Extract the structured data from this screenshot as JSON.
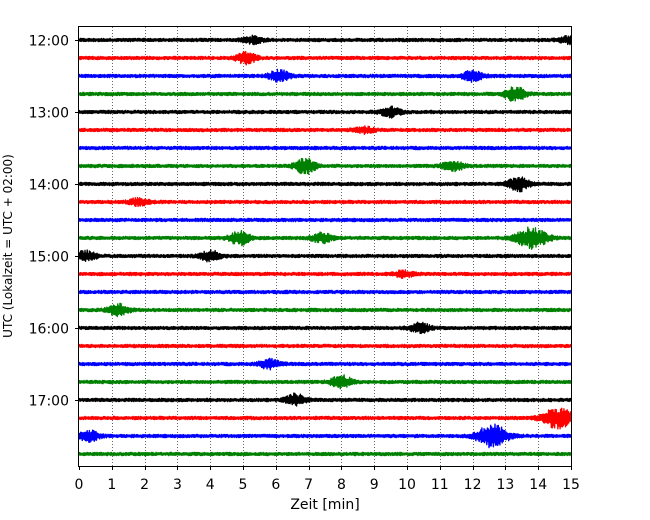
{
  "chart_data": {
    "type": "line",
    "title": "",
    "xlabel": "Zeit  [min]",
    "ylabel": "UTC (Lokalzeit = UTC + 02:00)",
    "xlim": [
      0,
      15
    ],
    "x_ticks": [
      0,
      1,
      2,
      3,
      4,
      5,
      6,
      7,
      8,
      9,
      10,
      11,
      12,
      13,
      14,
      15
    ],
    "x_tick_labels": [
      "0",
      "1",
      "2",
      "3",
      "4",
      "5",
      "6",
      "7",
      "8",
      "9",
      "10",
      "11",
      "12",
      "13",
      "14",
      "15"
    ],
    "y_tick_labels": [
      "12:00",
      "13:00",
      "14:00",
      "15:00",
      "16:00",
      "17:00"
    ],
    "grid": "vertical dotted",
    "trace_colors": [
      "#000000",
      "#ff0000",
      "#0000ff",
      "#008000"
    ],
    "series": [
      {
        "start": "12:00",
        "color": "#000000",
        "events": [
          {
            "t": 5.3,
            "amp": 0.35
          },
          {
            "t": 14.9,
            "amp": 0.35
          }
        ]
      },
      {
        "start": "12:15",
        "color": "#ff0000",
        "events": [
          {
            "t": 5.1,
            "amp": 0.6
          }
        ]
      },
      {
        "start": "12:30",
        "color": "#0000ff",
        "events": [
          {
            "t": 6.1,
            "amp": 0.6
          },
          {
            "t": 12.0,
            "amp": 0.55
          }
        ]
      },
      {
        "start": "12:45",
        "color": "#008000",
        "events": [
          {
            "t": 13.3,
            "amp": 0.75
          }
        ]
      },
      {
        "start": "13:00",
        "color": "#000000",
        "events": [
          {
            "t": 9.5,
            "amp": 0.5
          }
        ]
      },
      {
        "start": "13:15",
        "color": "#ff0000",
        "events": [
          {
            "t": 8.7,
            "amp": 0.3
          }
        ]
      },
      {
        "start": "13:30",
        "color": "#0000ff",
        "events": []
      },
      {
        "start": "13:45",
        "color": "#008000",
        "events": [
          {
            "t": 6.9,
            "amp": 0.85
          },
          {
            "t": 11.4,
            "amp": 0.55
          }
        ]
      },
      {
        "start": "14:00",
        "color": "#000000",
        "events": [
          {
            "t": 13.4,
            "amp": 0.75
          }
        ]
      },
      {
        "start": "14:15",
        "color": "#ff0000",
        "events": [
          {
            "t": 1.8,
            "amp": 0.35
          }
        ]
      },
      {
        "start": "14:30",
        "color": "#0000ff",
        "events": []
      },
      {
        "start": "14:45",
        "color": "#008000",
        "events": [
          {
            "t": 4.9,
            "amp": 0.75
          },
          {
            "t": 7.4,
            "amp": 0.5
          },
          {
            "t": 13.8,
            "amp": 1.1
          }
        ]
      },
      {
        "start": "15:00",
        "color": "#000000",
        "events": [
          {
            "t": 0.2,
            "amp": 0.5
          },
          {
            "t": 4.0,
            "amp": 0.55
          }
        ]
      },
      {
        "start": "15:15",
        "color": "#ff0000",
        "events": [
          {
            "t": 9.9,
            "amp": 0.3
          }
        ]
      },
      {
        "start": "15:30",
        "color": "#0000ff",
        "events": []
      },
      {
        "start": "15:45",
        "color": "#008000",
        "events": [
          {
            "t": 1.2,
            "amp": 0.6
          }
        ]
      },
      {
        "start": "16:00",
        "color": "#000000",
        "events": [
          {
            "t": 10.4,
            "amp": 0.5
          }
        ]
      },
      {
        "start": "16:15",
        "color": "#ff0000",
        "events": []
      },
      {
        "start": "16:30",
        "color": "#0000ff",
        "events": [
          {
            "t": 5.8,
            "amp": 0.5
          }
        ]
      },
      {
        "start": "16:45",
        "color": "#008000",
        "events": [
          {
            "t": 8.0,
            "amp": 0.7
          }
        ]
      },
      {
        "start": "17:00",
        "color": "#000000",
        "events": [
          {
            "t": 6.6,
            "amp": 0.6
          }
        ]
      },
      {
        "start": "17:15",
        "color": "#ff0000",
        "events": [
          {
            "t": 14.6,
            "amp": 1.1
          }
        ]
      },
      {
        "start": "17:30",
        "color": "#0000ff",
        "events": [
          {
            "t": 0.3,
            "amp": 0.6
          },
          {
            "t": 12.6,
            "amp": 1.2
          }
        ]
      },
      {
        "start": "17:45",
        "color": "#008000",
        "events": []
      }
    ]
  }
}
